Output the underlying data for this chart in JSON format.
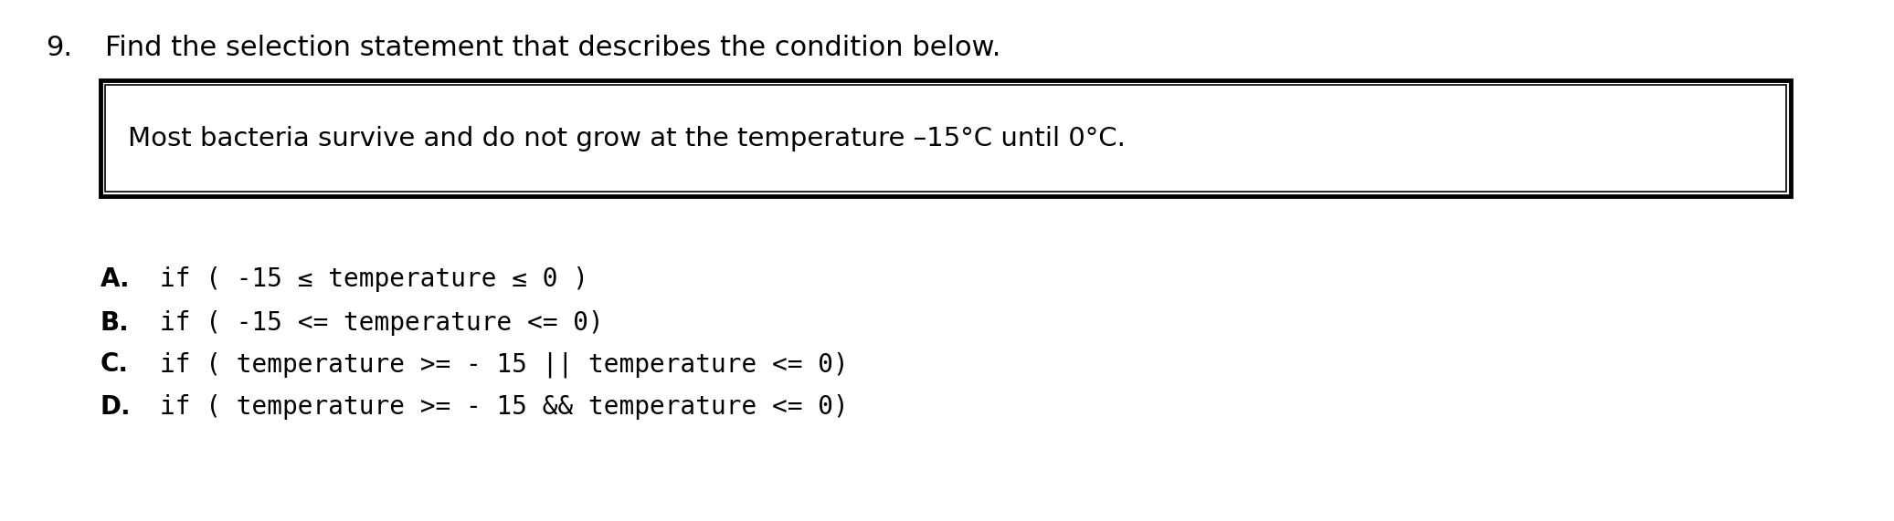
{
  "background_color": "#ffffff",
  "question_number": "9.",
  "question_text": "Find the selection statement that describes the condition below.",
  "box_text": "Most bacteria survive and do not grow at the temperature –15°C until 0°C.",
  "option_A_letter": "A.",
  "option_B_letter": "B.",
  "option_C_letter": "C.",
  "option_D_letter": "D.",
  "option_A_text": "if ( -15 ≤ temperature ≤ 0 )",
  "option_B_text": "if ( -15 <= temperature <= 0)",
  "option_C_text": "if ( temperature >= - 15 || temperature <= 0)",
  "option_D_text": "if ( temperature >= - 15 && temperature <= 0)",
  "figsize": [
    20.73,
    5.71
  ],
  "dpi": 100
}
